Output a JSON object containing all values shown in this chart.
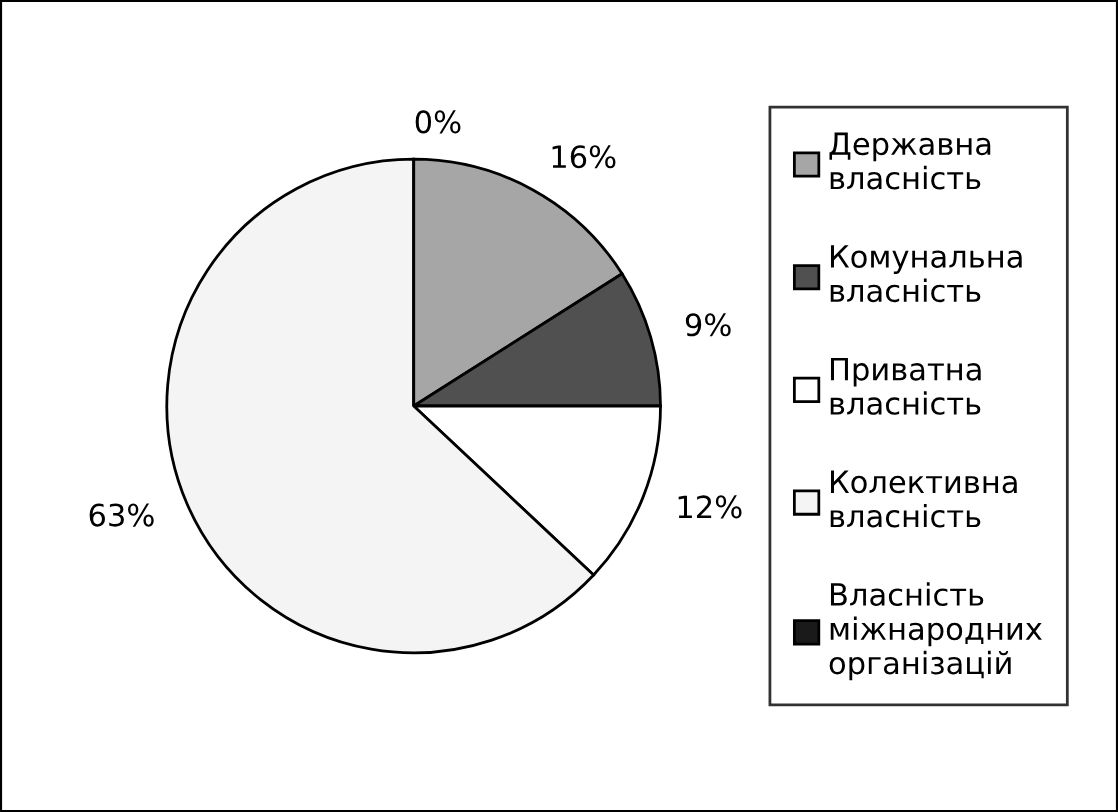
{
  "chart_data": {
    "type": "pie",
    "categories": [
      "Державна\nвласність",
      "Комунальна\nвласність",
      "Приватна\nвласність",
      "Колективна\nвласність",
      "Власність\nміжнародних\nорганізацій"
    ],
    "values": [
      16,
      9,
      12,
      63,
      0
    ],
    "value_labels": [
      "16%",
      "9%",
      "12%",
      "63%",
      "0%"
    ],
    "colors": [
      "#a6a6a6",
      "#505050",
      "#ffffff",
      "#f4f4f4",
      "#1a1a1a"
    ],
    "legend": "right"
  }
}
